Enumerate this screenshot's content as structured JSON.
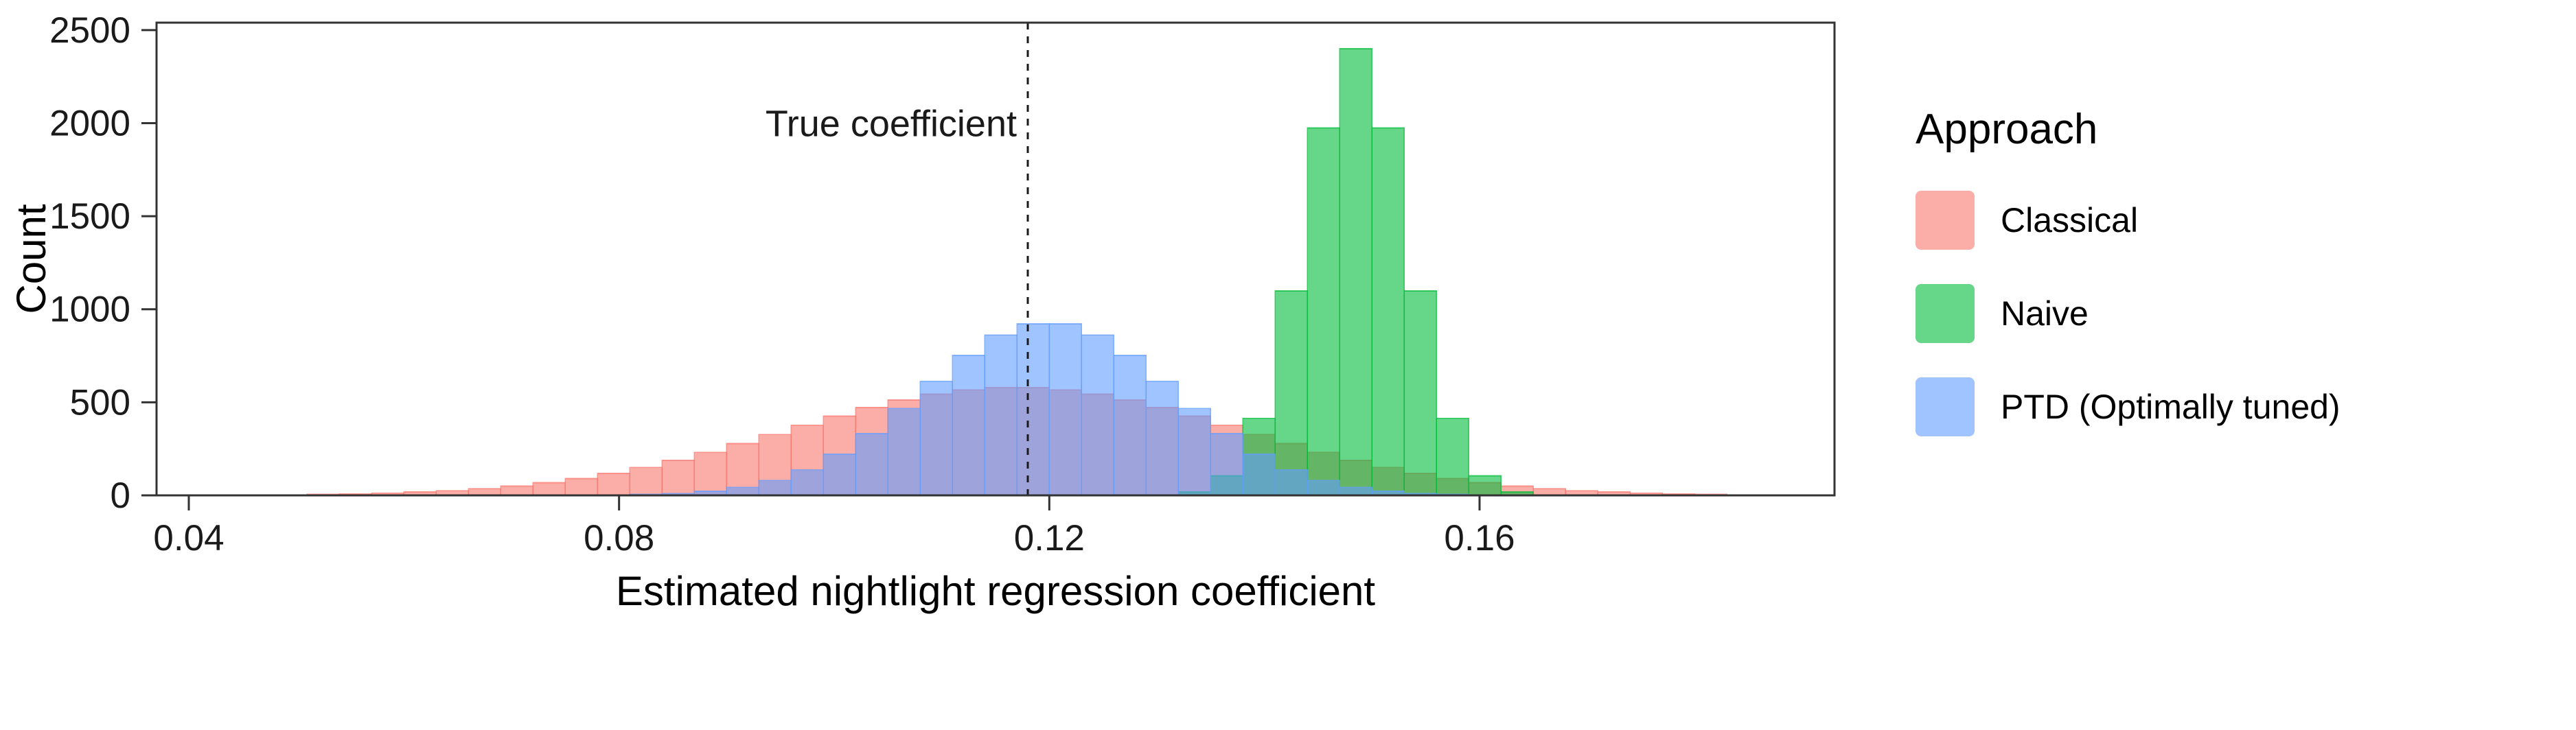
{
  "chart_data": {
    "type": "bar",
    "subtype": "overlaid-histogram",
    "title": "",
    "xlabel": "Estimated nightlight regression coefficient",
    "ylabel": "Count",
    "xlim": [
      0.037,
      0.193
    ],
    "ylim": [
      0,
      2540
    ],
    "x_ticks": [
      0.04,
      0.08,
      0.12,
      0.16
    ],
    "x_tick_labels": [
      "0.04",
      "0.08",
      "0.12",
      "0.16"
    ],
    "y_ticks": [
      0,
      500,
      1000,
      1500,
      2000,
      2500
    ],
    "y_tick_labels": [
      "0",
      "500",
      "1000",
      "1500",
      "2000",
      "2500"
    ],
    "grid": "off",
    "bin_start_edge": 0.042,
    "bin_width": 0.003,
    "n_bins": 50,
    "annotation": {
      "label": "True coefficient",
      "x": 0.118
    },
    "legend": {
      "title": "Approach",
      "position": "right"
    },
    "series": [
      {
        "name": "Classical",
        "color": "#F8766D",
        "counts": [
          1,
          2,
          3,
          5,
          8,
          12,
          18,
          25,
          36,
          50,
          68,
          90,
          118,
          150,
          188,
          231,
          278,
          327,
          377,
          426,
          472,
          512,
          544,
          567,
          579,
          579,
          567,
          544,
          512,
          472,
          426,
          377,
          327,
          278,
          231,
          188,
          150,
          118,
          90,
          68,
          50,
          36,
          25,
          18,
          12,
          8,
          5,
          3,
          2,
          1
        ]
      },
      {
        "name": "Naive",
        "color": "#00BA38",
        "counts": [
          0,
          0,
          0,
          0,
          0,
          0,
          0,
          0,
          0,
          0,
          0,
          0,
          0,
          0,
          0,
          0,
          0,
          0,
          0,
          0,
          0,
          0,
          0,
          0,
          0,
          0,
          0,
          0,
          0,
          0,
          18,
          105,
          414,
          1099,
          1974,
          2400,
          1974,
          1099,
          414,
          105,
          18,
          0,
          0,
          0,
          0,
          0,
          0,
          0,
          0,
          0
        ]
      },
      {
        "name": "PTD (Optimally tuned)",
        "color": "#619CFF",
        "counts": [
          0,
          0,
          0,
          0,
          0,
          0,
          0,
          0,
          0,
          0,
          0,
          0,
          0,
          5,
          10,
          22,
          43,
          80,
          137,
          221,
          332,
          467,
          613,
          752,
          862,
          922,
          922,
          862,
          752,
          613,
          467,
          332,
          221,
          137,
          80,
          43,
          22,
          10,
          5,
          2,
          1,
          0,
          0,
          0,
          0,
          0,
          0,
          0,
          0,
          0
        ]
      }
    ]
  }
}
